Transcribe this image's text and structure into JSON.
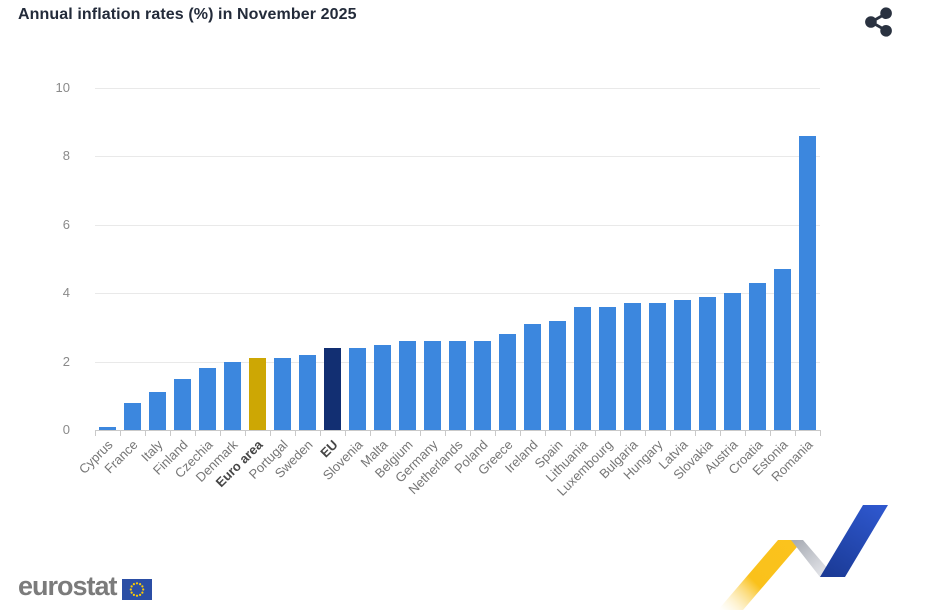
{
  "header": {
    "title": "Annual inflation rates (%) in November 2025",
    "share_icon": "share-icon"
  },
  "chart_data": {
    "type": "bar",
    "title": "Annual inflation rates (%) in November 2025",
    "xlabel": "",
    "ylabel": "",
    "ylim": [
      0,
      10
    ],
    "yticks": [
      0,
      2,
      4,
      6,
      8,
      10
    ],
    "grid": true,
    "legend": false,
    "categories": [
      "Cyprus",
      "France",
      "Italy",
      "Finland",
      "Czechia",
      "Denmark",
      "Euro area",
      "Portugal",
      "Sweden",
      "EU",
      "Slovenia",
      "Malta",
      "Belgium",
      "Germany",
      "Netherlands",
      "Poland",
      "Greece",
      "Ireland",
      "Spain",
      "Lithuania",
      "Luxembourg",
      "Bulgaria",
      "Hungary",
      "Latvia",
      "Slovakia",
      "Austria",
      "Croatia",
      "Estonia",
      "Romania"
    ],
    "values": [
      0.1,
      0.8,
      1.1,
      1.5,
      1.8,
      2.0,
      2.1,
      2.1,
      2.2,
      2.4,
      2.4,
      2.5,
      2.6,
      2.6,
      2.6,
      2.6,
      2.8,
      3.1,
      3.2,
      3.6,
      3.6,
      3.7,
      3.7,
      3.8,
      3.9,
      4.0,
      4.3,
      4.7,
      8.6
    ],
    "bold_categories": [
      "Euro area",
      "EU"
    ],
    "colors": {
      "bar": "#3c87de",
      "euro_area_bar": "#cda704",
      "eu_bar": "#122f72"
    }
  },
  "footer": {
    "logo_text": "eurostat"
  }
}
